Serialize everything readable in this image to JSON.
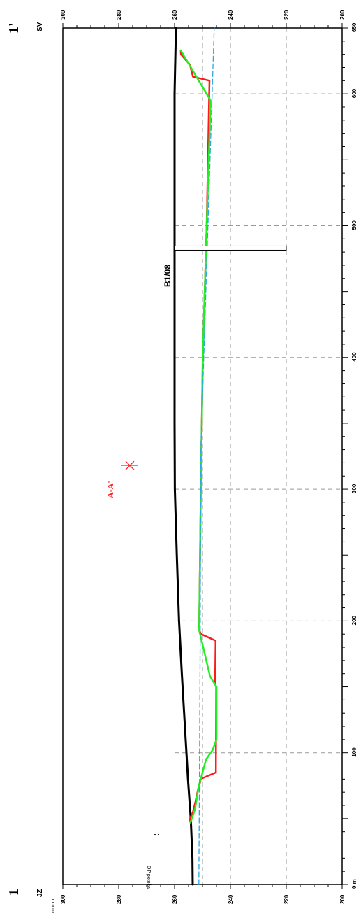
{
  "section": {
    "start_label": "1",
    "end_label": "1'",
    "start_direction": "JZ",
    "end_direction": "SV",
    "elevation_unit": "m n.m.",
    "distance_unit": "m",
    "cross_section_label": "A-A'",
    "borehole_label": "B1/08",
    "stream_label": "OP potoka",
    "colors": {
      "terrain": "#000000",
      "red_profile": "#ff1a1a",
      "green_profile": "#22ee22",
      "water_level": "#2aa9e0",
      "grid": "#999999"
    }
  },
  "chart_data": {
    "type": "line",
    "orientation": "rotated-90",
    "x_axis": {
      "label": "m",
      "range": [
        0,
        650
      ],
      "ticks": [
        0,
        100,
        200,
        300,
        400,
        500,
        600,
        650
      ],
      "tick_labels": [
        "0 m",
        "100",
        "200",
        "300",
        "400",
        "500",
        "600",
        "650"
      ]
    },
    "y_axis": {
      "label": "m n.m.",
      "range": [
        200,
        300
      ],
      "ticks": [
        200,
        220,
        240,
        260,
        280,
        300
      ],
      "tick_labels": [
        "200",
        "220",
        "240",
        "260",
        "280",
        "300"
      ]
    },
    "grid": true,
    "reference_lines": [
      250,
      240,
      220
    ],
    "series": [
      {
        "x": [
          0,
          20,
          50,
          80,
          120,
          160,
          200,
          250,
          300,
          350,
          400,
          450,
          500,
          550,
          600,
          650
        ],
        "y": [
          253.5,
          253.6,
          254.2,
          255.2,
          256.3,
          257.4,
          258.4,
          259.2,
          259.9,
          260,
          260,
          260,
          260,
          260,
          260,
          259.5
        ]
      },
      {
        "x": [
          47,
          50,
          55,
          57,
          62,
          73,
          78,
          80,
          85,
          150,
          152,
          185,
          190,
          193,
          300,
          400,
          500,
          600,
          610,
          613,
          622,
          630,
          633
        ],
        "y": [
          254.3,
          254.5,
          253.4,
          253.2,
          252.6,
          251.5,
          250.8,
          250.8,
          245.2,
          245.1,
          245.5,
          245.3,
          250.5,
          251.2,
          250.6,
          249.9,
          248.5,
          247.6,
          247.5,
          253.4,
          254.5,
          257.7,
          257.8
        ]
      },
      {
        "x": [
          47,
          57,
          75,
          95,
          102,
          110,
          150,
          158,
          193,
          300,
          400,
          500,
          595,
          633
        ],
        "y": [
          254.3,
          252.7,
          251.3,
          248.7,
          246.4,
          245,
          245,
          247.3,
          251.2,
          250.6,
          249.9,
          248.5,
          247.1,
          257.8
        ]
      },
      {
        "x": [
          0,
          200,
          330,
          650
        ],
        "y": [
          251.3,
          250.8,
          250.6,
          245.8
        ]
      }
    ],
    "markers": [
      {
        "label": "A-A'",
        "x": 318,
        "y": 276
      },
      {
        "label": "B1/08",
        "x": 483,
        "y_top": 260,
        "y_bottom": 220
      },
      {
        "label": "OP potoka",
        "x": 38,
        "y": 265
      }
    ]
  }
}
